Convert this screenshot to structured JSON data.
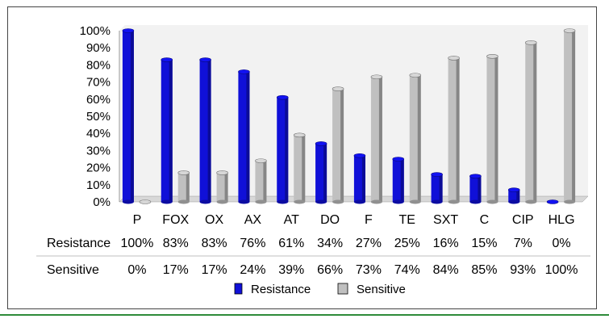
{
  "chart_data": {
    "type": "bar",
    "categories": [
      "P",
      "FOX",
      "OX",
      "AX",
      "AT",
      "DO",
      "F",
      "TE",
      "SXT",
      "C",
      "CIP",
      "HLG"
    ],
    "series": [
      {
        "name": "Resistance",
        "values": [
          100,
          83,
          83,
          76,
          61,
          34,
          27,
          25,
          16,
          15,
          7,
          0
        ],
        "labels": [
          "100%",
          "83%",
          "83%",
          "76%",
          "61%",
          "34%",
          "27%",
          "25%",
          "16%",
          "15%",
          "7%",
          "0%"
        ],
        "color": "#1010d8"
      },
      {
        "name": "Sensitive",
        "values": [
          0,
          17,
          17,
          24,
          39,
          66,
          73,
          74,
          84,
          85,
          93,
          100
        ],
        "labels": [
          "0%",
          "17%",
          "17%",
          "24%",
          "39%",
          "66%",
          "73%",
          "74%",
          "84%",
          "85%",
          "93%",
          "100%"
        ],
        "color": "#c0c0c0"
      }
    ],
    "y_ticks": [
      "0%",
      "10%",
      "20%",
      "30%",
      "40%",
      "50%",
      "60%",
      "70%",
      "80%",
      "90%",
      "100%"
    ],
    "ylim": [
      0,
      100
    ],
    "grid": false,
    "legend": "bottom",
    "data_table": true,
    "wall_color": "#f2f2f2"
  }
}
